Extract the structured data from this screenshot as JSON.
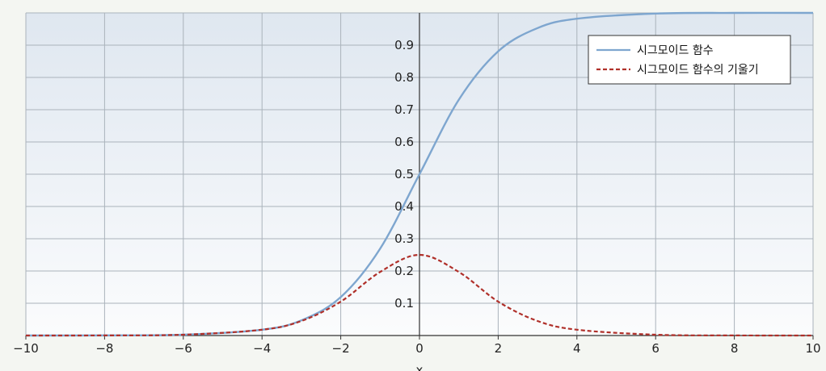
{
  "chart_data": {
    "type": "line",
    "title": "",
    "xlabel": "x",
    "ylabel": "",
    "xlim": [
      -10,
      10
    ],
    "ylim": [
      0,
      1
    ],
    "x_ticks": [
      -10,
      -8,
      -6,
      -4,
      -2,
      0,
      2,
      4,
      6,
      8,
      10
    ],
    "x_tick_labels": [
      "−10",
      "−8",
      "−6",
      "−4",
      "−2",
      "0",
      "2",
      "4",
      "6",
      "8",
      "10"
    ],
    "y_ticks": [
      0.1,
      0.2,
      0.3,
      0.4,
      0.5,
      0.6,
      0.7,
      0.8,
      0.9
    ],
    "y_tick_labels": [
      "0.1",
      "0.2",
      "0.3",
      "0.4",
      "0.5",
      "0.6",
      "0.7",
      "0.8",
      "0.9"
    ],
    "grid": true,
    "legend_position": "top-right",
    "series": [
      {
        "name": "시그모이드 함수",
        "color": "#7ea6cf",
        "style": "solid",
        "x": [
          -10,
          -8,
          -6,
          -4,
          -3,
          -2,
          -1,
          0,
          1,
          2,
          3,
          4,
          6,
          8,
          10
        ],
        "y": [
          0.0,
          0.0003,
          0.0025,
          0.018,
          0.047,
          0.119,
          0.269,
          0.5,
          0.731,
          0.881,
          0.953,
          0.982,
          0.998,
          1.0,
          1.0
        ]
      },
      {
        "name": "시그모이드 함수의 기울기",
        "color": "#b0302a",
        "style": "dashed",
        "x": [
          -10,
          -8,
          -6,
          -4,
          -3,
          -2,
          -1,
          0,
          1,
          2,
          3,
          4,
          6,
          8,
          10
        ],
        "y": [
          0.0,
          0.0003,
          0.0025,
          0.018,
          0.045,
          0.105,
          0.197,
          0.25,
          0.197,
          0.105,
          0.045,
          0.018,
          0.0025,
          0.0003,
          0.0
        ]
      }
    ]
  }
}
